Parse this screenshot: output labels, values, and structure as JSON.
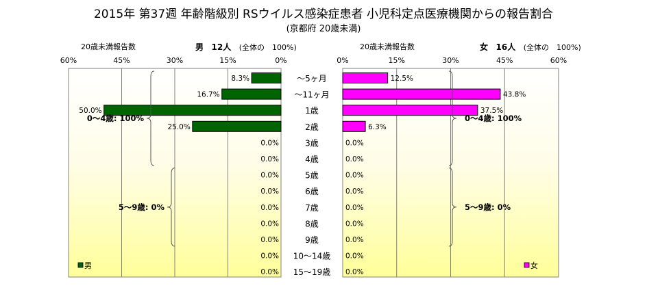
{
  "title": "2015年 第37週 年齢階級別 RSウイルス感染症患者 小児科定点医療機関からの報告割合",
  "subtitle": "(京都府 20歳未満)",
  "chart_data": {
    "type": "bar",
    "categories": [
      "～5ヶ月",
      "～11ヶ月",
      "1歳",
      "2歳",
      "3歳",
      "4歳",
      "5歳",
      "6歳",
      "7歳",
      "8歳",
      "9歳",
      "10～14歳",
      "15～19歳"
    ],
    "xlim": [
      0,
      60
    ],
    "tick_labels": [
      "0%",
      "15%",
      "30%",
      "45%",
      "60%"
    ],
    "grid": true,
    "panels": [
      {
        "side": "left",
        "header_label": "20歳未満報告数",
        "sex": "男",
        "count": "12人",
        "note": "(全体の　100%)",
        "legend": "男",
        "color": "#006400",
        "values": [
          8.3,
          16.7,
          50.0,
          25.0,
          0,
          0,
          0,
          0,
          0,
          0,
          0,
          0,
          0
        ],
        "value_labels": [
          "8.3%",
          "16.7%",
          "50.0%",
          "25.0%",
          "0.0%",
          "0.0%",
          "0.0%",
          "0.0%",
          "0.0%",
          "0.0%",
          "0.0%",
          "0.0%",
          "0.0%"
        ],
        "groups": [
          {
            "label": "0～4歳: 100%",
            "from": 0,
            "to": 5
          },
          {
            "label": "5～9歳: 0%",
            "from": 6,
            "to": 10
          }
        ]
      },
      {
        "side": "right",
        "header_label": "20歳未満報告数",
        "sex": "女",
        "count": "16人",
        "note": "(全体の　100%)",
        "legend": "女",
        "color": "#ff00ff",
        "values": [
          12.5,
          43.8,
          37.5,
          6.3,
          0,
          0,
          0,
          0,
          0,
          0,
          0,
          0,
          0
        ],
        "value_labels": [
          "12.5%",
          "43.8%",
          "37.5%",
          "6.3%",
          "0.0%",
          "0.0%",
          "0.0%",
          "0.0%",
          "0.0%",
          "0.0%",
          "0.0%",
          "0.0%",
          "0.0%"
        ],
        "groups": [
          {
            "label": "0～4歳: 100%",
            "from": 0,
            "to": 5
          },
          {
            "label": "5～9歳: 0%",
            "from": 6,
            "to": 10
          }
        ]
      }
    ]
  }
}
